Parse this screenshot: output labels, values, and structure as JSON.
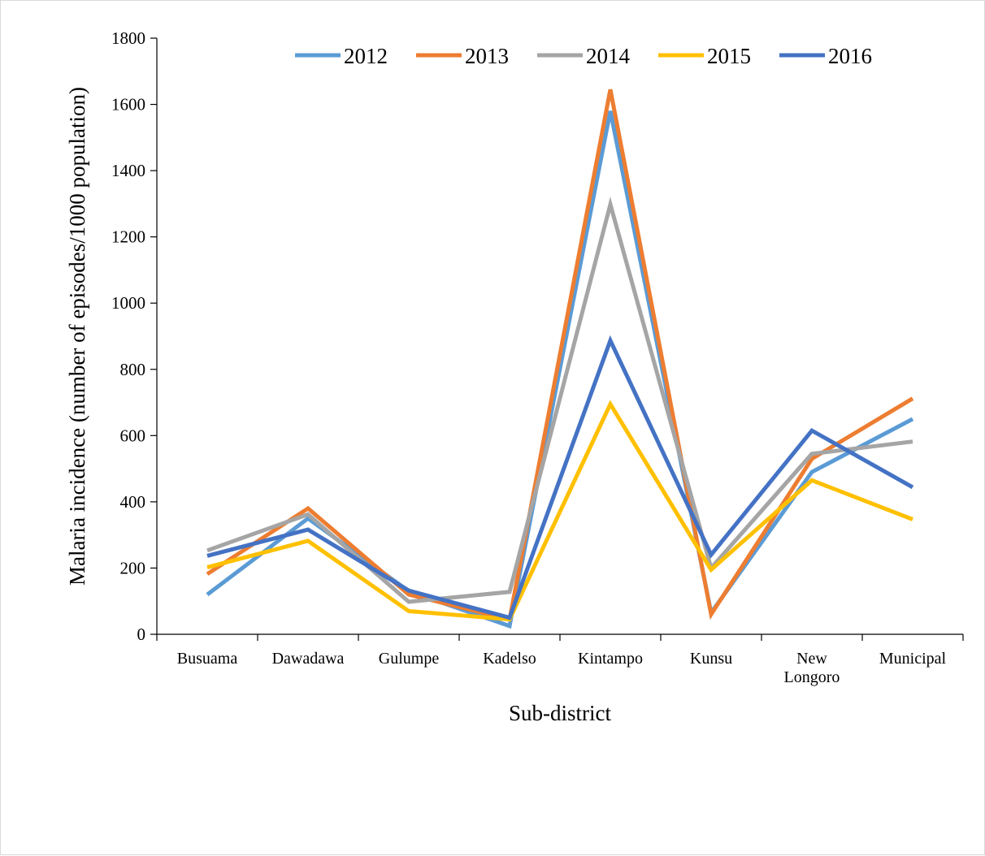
{
  "chart_data": {
    "type": "line",
    "title": "",
    "xlabel": "Sub-district",
    "ylabel": "Malaria incidence (number of episodes/1000 population)",
    "categories": [
      "Busuama",
      "Dawadawa",
      "Gulumpe",
      "Kadelso",
      "Kintampo",
      "Kunsu",
      "New Longoro",
      "Municipal"
    ],
    "category_lines": [
      [
        "Busuama"
      ],
      [
        "Dawadawa"
      ],
      [
        "Gulumpe"
      ],
      [
        "Kadelso"
      ],
      [
        "Kintampo"
      ],
      [
        "Kunsu"
      ],
      [
        "New",
        "Longoro"
      ],
      [
        "Municipal"
      ]
    ],
    "ylim": [
      0,
      1800
    ],
    "yticks": [
      0,
      200,
      400,
      600,
      800,
      1000,
      1200,
      1400,
      1600,
      1800
    ],
    "grid": false,
    "legend_position": "top",
    "series": [
      {
        "name": "2012",
        "color": "#5b9bd5",
        "values": [
          120,
          350,
          130,
          25,
          1580,
          65,
          490,
          650
        ]
      },
      {
        "name": "2013",
        "color": "#ed7d31",
        "values": [
          182,
          380,
          120,
          45,
          1645,
          60,
          530,
          712
        ]
      },
      {
        "name": "2014",
        "color": "#a5a5a5",
        "values": [
          253,
          362,
          98,
          128,
          1298,
          200,
          545,
          582
        ]
      },
      {
        "name": "2015",
        "color": "#ffc000",
        "values": [
          202,
          282,
          70,
          45,
          695,
          195,
          465,
          347
        ]
      },
      {
        "name": "2016",
        "color": "#4472c4",
        "values": [
          237,
          316,
          132,
          50,
          887,
          240,
          615,
          444
        ]
      }
    ]
  }
}
